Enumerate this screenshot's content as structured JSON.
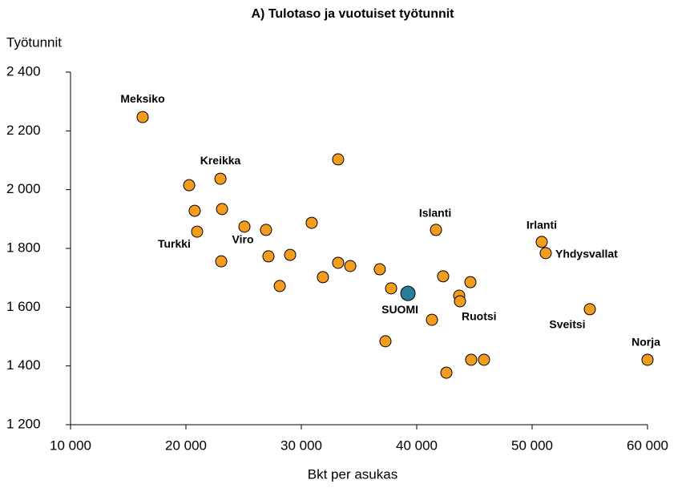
{
  "chart_data": {
    "type": "scatter",
    "title": "A) Tulotaso ja vuotuiset työtunnit",
    "ylabel": "Työtunnit",
    "xlabel": "Bkt per asukas",
    "x": [
      16250,
      20280,
      20760,
      20970,
      22990,
      23130,
      23060,
      25070,
      26940,
      27150,
      29030,
      28130,
      30900,
      33190,
      33190,
      31870,
      34240,
      36800,
      37780,
      37290,
      39240,
      41670,
      42290,
      41320,
      43680,
      43750,
      44650,
      42570,
      44720,
      45830,
      50830,
      51180,
      55000,
      60000
    ],
    "values": [
      2247,
      2015,
      1928,
      1857,
      2037,
      1934,
      1756,
      1874,
      1863,
      1773,
      1778,
      1672,
      1887,
      2103,
      1751,
      1702,
      1740,
      1729,
      1664,
      1484,
      1647,
      1863,
      1705,
      1557,
      1639,
      1620,
      1685,
      1377,
      1421,
      1421,
      1822,
      1784,
      1593,
      1421
    ],
    "labels": [
      "Meksiko",
      null,
      null,
      "Turkki",
      "Kreikka",
      null,
      null,
      "Viro",
      null,
      null,
      null,
      null,
      null,
      null,
      null,
      null,
      null,
      null,
      null,
      null,
      "SUOMI",
      "Islanti",
      null,
      null,
      null,
      "Ruotsi",
      null,
      null,
      null,
      null,
      "Irlanti",
      "Yhdysvallat",
      "Sveitsi",
      "Norja"
    ],
    "colors": [
      "#f39c1e",
      "#f39c1e",
      "#f39c1e",
      "#f39c1e",
      "#f39c1e",
      "#f39c1e",
      "#f39c1e",
      "#f39c1e",
      "#f39c1e",
      "#f39c1e",
      "#f39c1e",
      "#f39c1e",
      "#f39c1e",
      "#f39c1e",
      "#f39c1e",
      "#f39c1e",
      "#f39c1e",
      "#f39c1e",
      "#f39c1e",
      "#f39c1e",
      "#2a7d96",
      "#f39c1e",
      "#f39c1e",
      "#f39c1e",
      "#f39c1e",
      "#f39c1e",
      "#f39c1e",
      "#f39c1e",
      "#f39c1e",
      "#f39c1e",
      "#f39c1e",
      "#f39c1e",
      "#f39c1e",
      "#f39c1e"
    ],
    "xlim": [
      10000,
      60000
    ],
    "ylim": [
      1200,
      2400
    ],
    "xticks": [
      {
        "value": 10000,
        "label": "10 000"
      },
      {
        "value": 20000,
        "label": "20 000"
      },
      {
        "value": 30000,
        "label": "30 000"
      },
      {
        "value": 40000,
        "label": "40 000"
      },
      {
        "value": 50000,
        "label": "50 000"
      },
      {
        "value": 60000,
        "label": "60 000"
      }
    ],
    "yticks": [
      {
        "value": 1200,
        "label": "1 200"
      },
      {
        "value": 1400,
        "label": "1 400"
      },
      {
        "value": 1600,
        "label": "1 600"
      },
      {
        "value": 1800,
        "label": "1 800"
      },
      {
        "value": 2000,
        "label": "2 000"
      },
      {
        "value": 2200,
        "label": "2 200"
      },
      {
        "value": 2400,
        "label": "2 400"
      }
    ],
    "grid": false
  }
}
